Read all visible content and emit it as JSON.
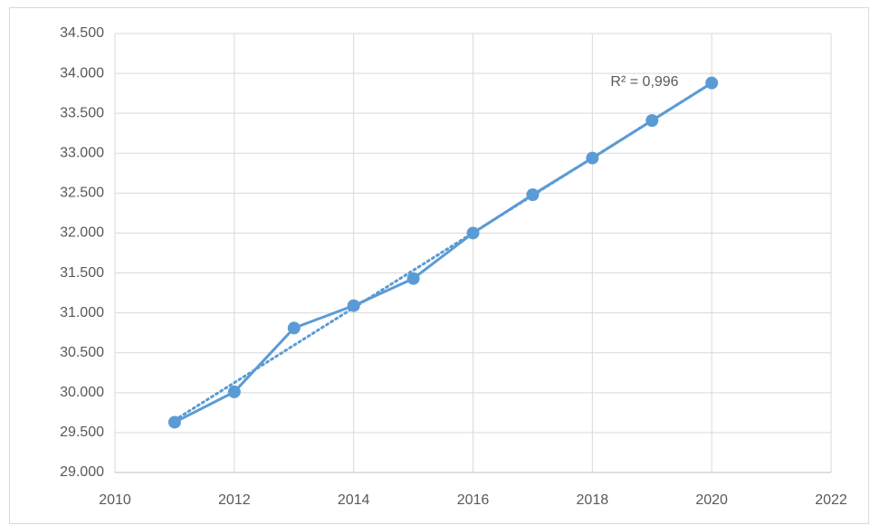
{
  "chart_data": {
    "type": "line",
    "x": [
      2011,
      2012,
      2013,
      2014,
      2015,
      2016,
      2017,
      2018,
      2019,
      2020
    ],
    "series": [
      {
        "color": "#5b9bd5",
        "values": [
          29630,
          30010,
          30810,
          31090,
          31430,
          32000,
          32480,
          32940,
          33410,
          33880
        ]
      }
    ],
    "trendline": {
      "type": "linear",
      "style": "dotted"
    },
    "annotation": "R² = 0,996",
    "xlim": [
      2010,
      2022
    ],
    "xticks": [
      2010,
      2012,
      2014,
      2016,
      2018,
      2020,
      2022
    ],
    "ylim": [
      29000,
      34500
    ],
    "yticks": [
      {
        "value": 29000,
        "label": "29.000"
      },
      {
        "value": 29500,
        "label": "29.500"
      },
      {
        "value": 30000,
        "label": "30.000"
      },
      {
        "value": 30500,
        "label": "30.500"
      },
      {
        "value": 31000,
        "label": "31.000"
      },
      {
        "value": 31500,
        "label": "31.500"
      },
      {
        "value": 32000,
        "label": "32.000"
      },
      {
        "value": 32500,
        "label": "32.500"
      },
      {
        "value": 33000,
        "label": "33.000"
      },
      {
        "value": 33500,
        "label": "33.500"
      },
      {
        "value": 34000,
        "label": "34.000"
      },
      {
        "value": 34500,
        "label": "34.500"
      }
    ],
    "grid": true
  }
}
